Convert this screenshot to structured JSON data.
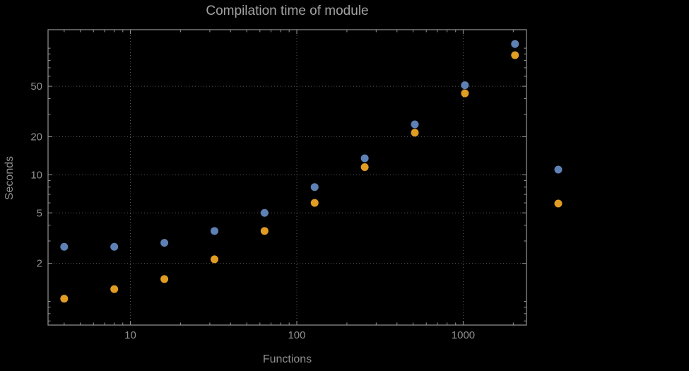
{
  "title": "Compilation time of module",
  "colors": {
    "background": "#000000",
    "frame": "#8a8a8a",
    "grid": "#565656",
    "text": "#909090",
    "series1": "#5e81b5",
    "series2": "#e19c24"
  },
  "chart_data": {
    "type": "scatter",
    "title": "Compilation time of module",
    "xlabel": "Functions",
    "ylabel": "Seconds",
    "xscale": "log",
    "yscale": "log",
    "xlim": [
      3.2,
      2400
    ],
    "ylim": [
      0.65,
      140
    ],
    "x_ticks": [
      10,
      100,
      1000
    ],
    "x_tick_labels": [
      "10",
      "100",
      "1000"
    ],
    "y_ticks": [
      2,
      5,
      10,
      20,
      50
    ],
    "y_tick_labels": [
      "2",
      "5",
      "10",
      "20",
      "50"
    ],
    "grid": "dotted-major",
    "legend_position": "right",
    "x": [
      4,
      8,
      16,
      32,
      64,
      128,
      256,
      512,
      1024,
      2048
    ],
    "series": [
      {
        "name": "series-1-blue",
        "color": "#5e81b5",
        "values": [
          2.7,
          2.7,
          2.9,
          3.6,
          5.0,
          8.0,
          13.5,
          25,
          51,
          108
        ]
      },
      {
        "name": "series-2-orange",
        "color": "#e19c24",
        "values": [
          1.05,
          1.25,
          1.5,
          2.15,
          3.6,
          6.0,
          11.5,
          21.5,
          44,
          88
        ]
      }
    ],
    "legend_markers": [
      {
        "name": "legend-marker-blue",
        "color": "#5e81b5",
        "y_value": 11
      },
      {
        "name": "legend-marker-orange",
        "color": "#e19c24",
        "y_value": 6
      }
    ]
  }
}
